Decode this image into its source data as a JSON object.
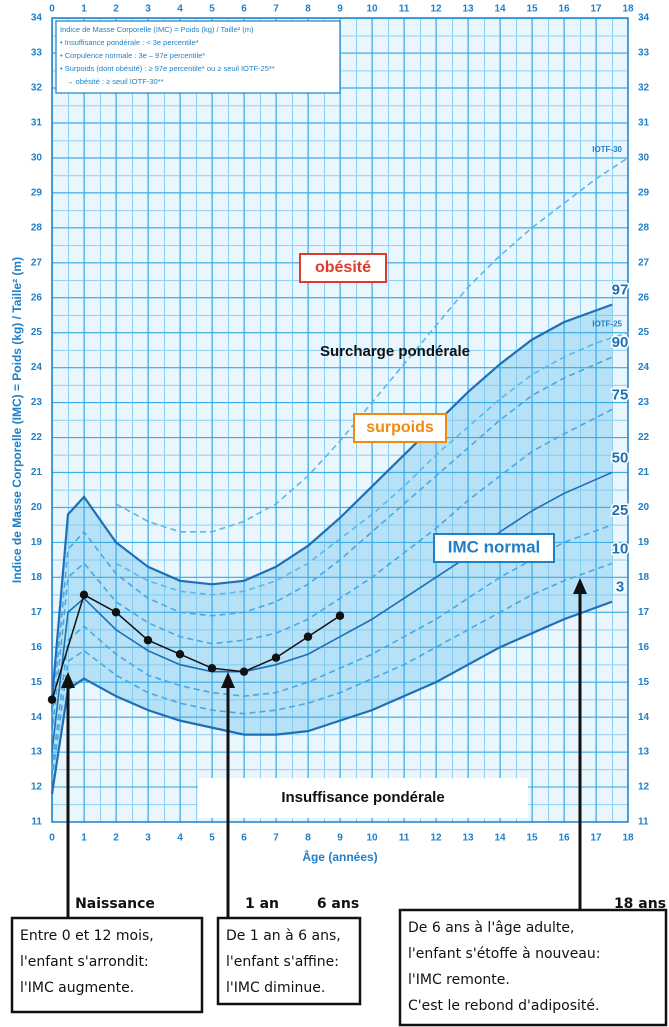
{
  "chart_data": {
    "type": "line",
    "ylabel": "Indice de Masse Corporelle (IMC) = Poids (kg) / Taille² (m)",
    "xlabel": "Âge (années)",
    "xlim": [
      0,
      18
    ],
    "ylim": [
      11,
      34
    ],
    "xticks": [
      0,
      1,
      2,
      3,
      4,
      5,
      6,
      7,
      8,
      9,
      10,
      11,
      12,
      13,
      14,
      15,
      16,
      17,
      18
    ],
    "yticks": [
      11,
      12,
      13,
      14,
      15,
      16,
      17,
      18,
      19,
      20,
      21,
      22,
      23,
      24,
      25,
      26,
      27,
      28,
      29,
      30,
      31,
      32,
      33,
      34
    ],
    "grid": true,
    "legend_note": [
      "Indice de Masse Corporelle (IMC) = Poids (kg) / Taille² (m)",
      "• Insuffisance pondérale : < 3e percentile*",
      "• Corpulence normale : 3e – 97e percentile*",
      "• Surpoids (dont obésité) : ≥ 97e percentile* ou ≥ seuil IOTF-25**",
      "→ obésité : ≥ seuil IOTF-30**"
    ],
    "region_labels": [
      "obésité",
      "Surcharge pondérale",
      "surpoids",
      "IMC normal",
      "Insuffisance pondérale"
    ],
    "series": [
      {
        "name": "97",
        "color": "#1f6fb5",
        "dash": false,
        "x": [
          0,
          0.5,
          1,
          2,
          3,
          4,
          5,
          6,
          7,
          8,
          9,
          10,
          11,
          12,
          13,
          14,
          15,
          16,
          17.5
        ],
        "values": [
          14.5,
          19.8,
          20.3,
          19.0,
          18.3,
          17.9,
          17.8,
          17.9,
          18.3,
          18.9,
          19.7,
          20.6,
          21.5,
          22.4,
          23.3,
          24.1,
          24.8,
          25.3,
          25.8
        ]
      },
      {
        "name": "IOTF-25",
        "color": "#5cb8e8",
        "dash": true,
        "x": [
          2,
          3,
          4,
          5,
          6,
          7,
          8,
          9,
          10,
          11,
          12,
          13,
          14,
          15,
          16,
          17,
          18
        ],
        "values": [
          18.4,
          17.9,
          17.6,
          17.5,
          17.6,
          17.9,
          18.4,
          19.1,
          19.8,
          20.6,
          21.5,
          22.3,
          23.1,
          23.8,
          24.3,
          24.7,
          25.0
        ]
      },
      {
        "name": "90",
        "color": "#4aa8e0",
        "dash": true,
        "x": [
          0,
          0.5,
          1,
          2,
          3,
          4,
          5,
          6,
          7,
          8,
          9,
          10,
          11,
          12,
          13,
          14,
          15,
          16,
          17.5
        ],
        "values": [
          14.0,
          18.8,
          19.3,
          18.1,
          17.4,
          17.0,
          16.9,
          17.0,
          17.3,
          17.8,
          18.5,
          19.3,
          20.1,
          20.9,
          21.7,
          22.5,
          23.2,
          23.7,
          24.3
        ]
      },
      {
        "name": "75",
        "color": "#4aa8e0",
        "dash": true,
        "x": [
          0,
          0.5,
          1,
          2,
          3,
          4,
          5,
          6,
          7,
          8,
          9,
          10,
          11,
          12,
          13,
          14,
          15,
          16,
          17.5
        ],
        "values": [
          13.5,
          18.0,
          18.4,
          17.3,
          16.7,
          16.3,
          16.1,
          16.2,
          16.4,
          16.8,
          17.4,
          18.0,
          18.7,
          19.4,
          20.2,
          20.9,
          21.6,
          22.1,
          22.8
        ]
      },
      {
        "name": "50",
        "color": "#1f6fb5",
        "dash": false,
        "x": [
          0,
          0.5,
          1,
          2,
          3,
          4,
          5,
          6,
          7,
          8,
          9,
          10,
          11,
          12,
          13,
          14,
          15,
          16,
          17.5
        ],
        "values": [
          13.0,
          17.0,
          17.4,
          16.5,
          15.9,
          15.5,
          15.3,
          15.3,
          15.5,
          15.8,
          16.3,
          16.8,
          17.4,
          18.0,
          18.6,
          19.3,
          19.9,
          20.4,
          21.0
        ]
      },
      {
        "name": "25",
        "color": "#4aa8e0",
        "dash": true,
        "x": [
          0,
          0.5,
          1,
          2,
          3,
          4,
          5,
          6,
          7,
          8,
          9,
          10,
          11,
          12,
          13,
          14,
          15,
          16,
          17.5
        ],
        "values": [
          12.5,
          16.2,
          16.6,
          15.8,
          15.2,
          14.9,
          14.7,
          14.6,
          14.7,
          15.0,
          15.4,
          15.8,
          16.3,
          16.8,
          17.4,
          18.0,
          18.5,
          19.0,
          19.5
        ]
      },
      {
        "name": "10",
        "color": "#4aa8e0",
        "dash": true,
        "x": [
          0,
          0.5,
          1,
          2,
          3,
          4,
          5,
          6,
          7,
          8,
          9,
          10,
          11,
          12,
          13,
          14,
          15,
          16,
          17.5
        ],
        "values": [
          12.2,
          15.6,
          15.9,
          15.2,
          14.7,
          14.4,
          14.2,
          14.1,
          14.2,
          14.4,
          14.7,
          15.1,
          15.5,
          16.0,
          16.5,
          17.0,
          17.5,
          17.9,
          18.4
        ]
      },
      {
        "name": "3",
        "color": "#1f6fb5",
        "dash": false,
        "x": [
          0,
          0.5,
          1,
          2,
          3,
          4,
          5,
          6,
          7,
          8,
          9,
          10,
          11,
          12,
          13,
          14,
          15,
          16,
          17.5
        ],
        "values": [
          11.8,
          14.8,
          15.1,
          14.6,
          14.2,
          13.9,
          13.7,
          13.5,
          13.5,
          13.6,
          13.9,
          14.2,
          14.6,
          15.0,
          15.5,
          16.0,
          16.4,
          16.8,
          17.3
        ]
      },
      {
        "name": "IOTF-30",
        "color": "#5cb8e8",
        "dash": true,
        "x": [
          2,
          3,
          4,
          5,
          6,
          7,
          8,
          9,
          10,
          11,
          12,
          13,
          14,
          15,
          16,
          17,
          18
        ],
        "values": [
          20.1,
          19.6,
          19.3,
          19.3,
          19.6,
          20.1,
          20.9,
          21.9,
          23.0,
          24.1,
          25.2,
          26.3,
          27.2,
          28.0,
          28.7,
          29.4,
          30.0
        ]
      },
      {
        "color": "#111111",
        "dash": false,
        "markers": true,
        "x": [
          0,
          1,
          2,
          3,
          4,
          5,
          6,
          7,
          8,
          9
        ],
        "values": [
          14.5,
          17.5,
          17.0,
          16.2,
          15.8,
          15.4,
          15.3,
          15.7,
          16.3,
          16.9
        ]
      }
    ],
    "annotations": {
      "markers": [
        "Naissance",
        "1 an",
        "6 ans",
        "18 ans"
      ],
      "boxes": [
        [
          "Entre 0 et 12 mois,",
          "l'enfant s'arrondit:",
          "l'IMC augmente."
        ],
        [
          "De 1 an à 6 ans,",
          "l'enfant s'affine:",
          "l'IMC diminue."
        ],
        [
          "De 6 ans à l'âge adulte,",
          "l'enfant s'étoffe à nouveau:",
          "l'IMC remonte.",
          "C'est le rebond d'adiposité."
        ]
      ]
    }
  }
}
